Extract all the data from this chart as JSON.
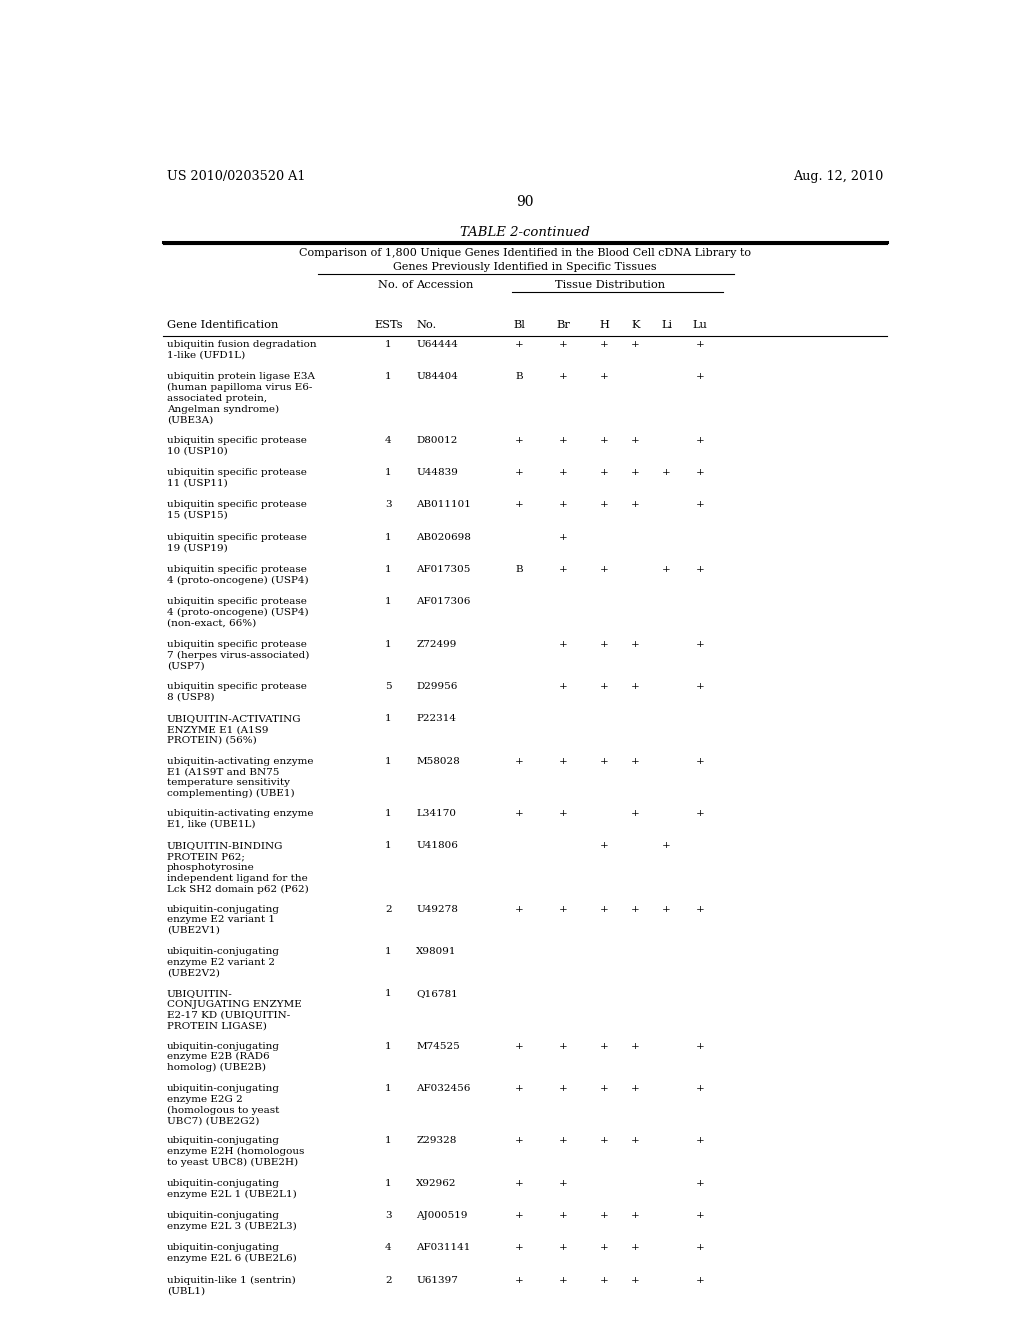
{
  "patent_left": "US 2010/0203520 A1",
  "patent_right": "Aug. 12, 2010",
  "page_number": "90",
  "table_title": "TABLE 2-continued",
  "table_subtitle1": "Comparison of 1,800 Unique Genes Identified in the Blood Cell cDNA Library to",
  "table_subtitle2": "Genes Previously Identified in Specific Tissues",
  "col_header_group": "Tissue Distribution",
  "rows": [
    {
      "gene": "ubiquitin fusion degradation\n1-like (UFD1L)",
      "ests": "1",
      "acc": "U64444",
      "Bl": "+",
      "Br": "+",
      "H": "+",
      "K": "+",
      "Li": "",
      "Lu": "+"
    },
    {
      "gene": "ubiquitin protein ligase E3A\n(human papilloma virus E6-\nassociated protein,\nAngelman syndrome)\n(UBE3A)",
      "ests": "1",
      "acc": "U84404",
      "Bl": "B",
      "Br": "+",
      "H": "+",
      "K": "",
      "Li": "",
      "Lu": "+"
    },
    {
      "gene": "ubiquitin specific protease\n10 (USP10)",
      "ests": "4",
      "acc": "D80012",
      "Bl": "+",
      "Br": "+",
      "H": "+",
      "K": "+",
      "Li": "",
      "Lu": "+"
    },
    {
      "gene": "ubiquitin specific protease\n11 (USP11)",
      "ests": "1",
      "acc": "U44839",
      "Bl": "+",
      "Br": "+",
      "H": "+",
      "K": "+",
      "Li": "+",
      "Lu": "+"
    },
    {
      "gene": "ubiquitin specific protease\n15 (USP15)",
      "ests": "3",
      "acc": "AB011101",
      "Bl": "+",
      "Br": "+",
      "H": "+",
      "K": "+",
      "Li": "",
      "Lu": "+"
    },
    {
      "gene": "ubiquitin specific protease\n19 (USP19)",
      "ests": "1",
      "acc": "AB020698",
      "Bl": "",
      "Br": "+",
      "H": "",
      "K": "",
      "Li": "",
      "Lu": ""
    },
    {
      "gene": "ubiquitin specific protease\n4 (proto-oncogene) (USP4)",
      "ests": "1",
      "acc": "AF017305",
      "Bl": "B",
      "Br": "+",
      "H": "+",
      "K": "",
      "Li": "+",
      "Lu": "+"
    },
    {
      "gene": "ubiquitin specific protease\n4 (proto-oncogene) (USP4)\n(non-exact, 66%)",
      "ests": "1",
      "acc": "AF017306",
      "Bl": "",
      "Br": "",
      "H": "",
      "K": "",
      "Li": "",
      "Lu": ""
    },
    {
      "gene": "ubiquitin specific protease\n7 (herpes virus-associated)\n(USP7)",
      "ests": "1",
      "acc": "Z72499",
      "Bl": "",
      "Br": "+",
      "H": "+",
      "K": "+",
      "Li": "",
      "Lu": "+"
    },
    {
      "gene": "ubiquitin specific protease\n8 (USP8)",
      "ests": "5",
      "acc": "D29956",
      "Bl": "",
      "Br": "+",
      "H": "+",
      "K": "+",
      "Li": "",
      "Lu": "+"
    },
    {
      "gene": "UBIQUITIN-ACTIVATING\nENZYME E1 (A1S9\nPROTEIN) (56%)",
      "ests": "1",
      "acc": "P22314",
      "Bl": "",
      "Br": "",
      "H": "",
      "K": "",
      "Li": "",
      "Lu": ""
    },
    {
      "gene": "ubiquitin-activating enzyme\nE1 (A1S9T and BN75\ntemperature sensitivity\ncomplementing) (UBE1)",
      "ests": "1",
      "acc": "M58028",
      "Bl": "+",
      "Br": "+",
      "H": "+",
      "K": "+",
      "Li": "",
      "Lu": "+"
    },
    {
      "gene": "ubiquitin-activating enzyme\nE1, like (UBE1L)",
      "ests": "1",
      "acc": "L34170",
      "Bl": "+",
      "Br": "+",
      "H": "",
      "K": "+",
      "Li": "",
      "Lu": "+"
    },
    {
      "gene": "UBIQUITIN-BINDING\nPROTEIN P62;\nphosphotyrosine\nindependent ligand for the\nLck SH2 domain p62 (P62)",
      "ests": "1",
      "acc": "U41806",
      "Bl": "",
      "Br": "",
      "H": "+",
      "K": "",
      "Li": "+",
      "Lu": ""
    },
    {
      "gene": "ubiquitin-conjugating\nenzyme E2 variant 1\n(UBE2V1)",
      "ests": "2",
      "acc": "U49278",
      "Bl": "+",
      "Br": "+",
      "H": "+",
      "K": "+",
      "Li": "+",
      "Lu": "+"
    },
    {
      "gene": "ubiquitin-conjugating\nenzyme E2 variant 2\n(UBE2V2)",
      "ests": "1",
      "acc": "X98091",
      "Bl": "",
      "Br": "",
      "H": "",
      "K": "",
      "Li": "",
      "Lu": ""
    },
    {
      "gene": "UBIQUITIN-\nCONJUGATING ENZYME\nE2-17 KD (UBIQUITIN-\nPROTEIN LIGASE)",
      "ests": "1",
      "acc": "Q16781",
      "Bl": "",
      "Br": "",
      "H": "",
      "K": "",
      "Li": "",
      "Lu": ""
    },
    {
      "gene": "ubiquitin-conjugating\nenzyme E2B (RAD6\nhomolog) (UBE2B)",
      "ests": "1",
      "acc": "M74525",
      "Bl": "+",
      "Br": "+",
      "H": "+",
      "K": "+",
      "Li": "",
      "Lu": "+"
    },
    {
      "gene": "ubiquitin-conjugating\nenzyme E2G 2\n(homologous to yeast\nUBC7) (UBE2G2)",
      "ests": "1",
      "acc": "AF032456",
      "Bl": "+",
      "Br": "+",
      "H": "+",
      "K": "+",
      "Li": "",
      "Lu": "+"
    },
    {
      "gene": "ubiquitin-conjugating\nenzyme E2H (homologous\nto yeast UBC8) (UBE2H)",
      "ests": "1",
      "acc": "Z29328",
      "Bl": "+",
      "Br": "+",
      "H": "+",
      "K": "+",
      "Li": "",
      "Lu": "+"
    },
    {
      "gene": "ubiquitin-conjugating\nenzyme E2L 1 (UBE2L1)",
      "ests": "1",
      "acc": "X92962",
      "Bl": "+",
      "Br": "+",
      "H": "",
      "K": "",
      "Li": "",
      "Lu": "+"
    },
    {
      "gene": "ubiquitin-conjugating\nenzyme E2L 3 (UBE2L3)",
      "ests": "3",
      "acc": "AJ000519",
      "Bl": "+",
      "Br": "+",
      "H": "+",
      "K": "+",
      "Li": "",
      "Lu": "+"
    },
    {
      "gene": "ubiquitin-conjugating\nenzyme E2L 6 (UBE2L6)",
      "ests": "4",
      "acc": "AF031141",
      "Bl": "+",
      "Br": "+",
      "H": "+",
      "K": "+",
      "Li": "",
      "Lu": "+"
    },
    {
      "gene": "ubiquitin-like 1 (sentrin)\n(UBL1)",
      "ests": "2",
      "acc": "U61397",
      "Bl": "+",
      "Br": "+",
      "H": "+",
      "K": "+",
      "Li": "",
      "Lu": "+"
    }
  ]
}
